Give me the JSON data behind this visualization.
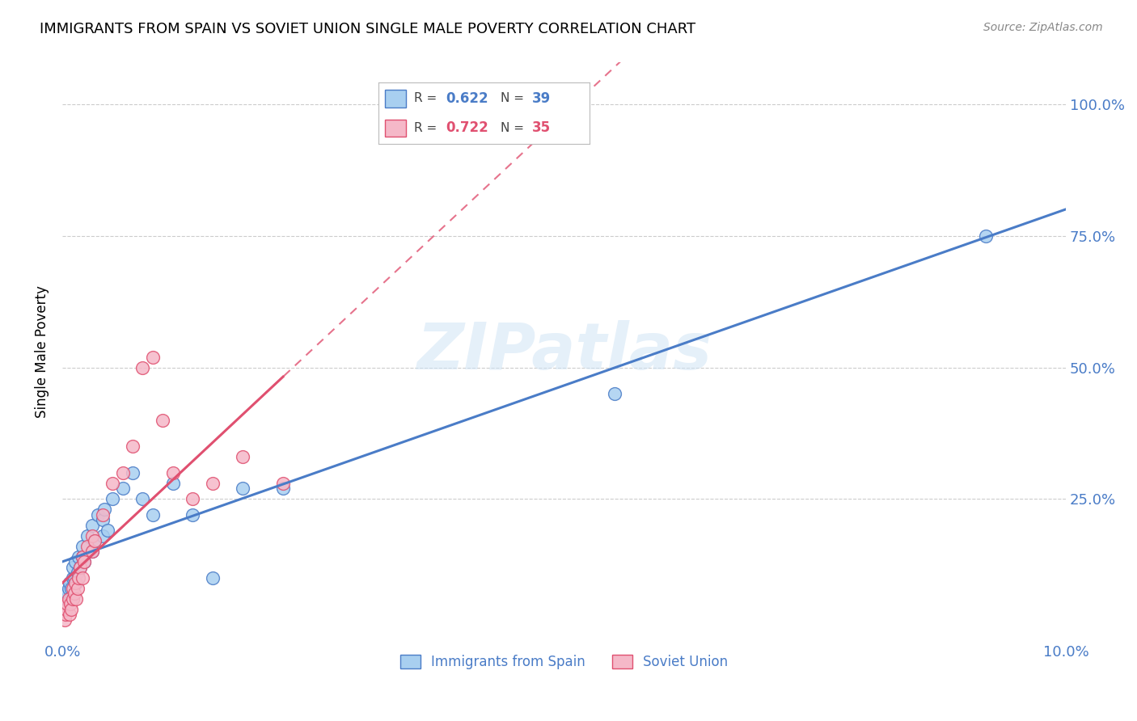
{
  "title": "IMMIGRANTS FROM SPAIN VS SOVIET UNION SINGLE MALE POVERTY CORRELATION CHART",
  "source": "Source: ZipAtlas.com",
  "ylabel": "Single Male Poverty",
  "ytick_labels": [
    "100.0%",
    "75.0%",
    "50.0%",
    "25.0%"
  ],
  "ytick_values": [
    1.0,
    0.75,
    0.5,
    0.25
  ],
  "xlim": [
    0.0,
    0.1
  ],
  "ylim": [
    -0.02,
    1.08
  ],
  "legend_label_1": "Immigrants from Spain",
  "legend_label_2": "Soviet Union",
  "r1": "0.622",
  "n1": "39",
  "r2": "0.722",
  "n2": "35",
  "color_spain": "#A8CFF0",
  "color_soviet": "#F5B8C8",
  "color_regression_spain": "#4A7CC7",
  "color_regression_soviet": "#E05070",
  "color_text_blue": "#4A7CC7",
  "watermark_text": "ZIPatlas",
  "spain_x": [
    0.0003,
    0.0004,
    0.0005,
    0.0006,
    0.0007,
    0.0008,
    0.0009,
    0.001,
    0.001,
    0.0012,
    0.0013,
    0.0014,
    0.0015,
    0.0016,
    0.0018,
    0.002,
    0.002,
    0.0022,
    0.0025,
    0.003,
    0.003,
    0.0032,
    0.0035,
    0.004,
    0.004,
    0.0042,
    0.0045,
    0.005,
    0.006,
    0.007,
    0.008,
    0.009,
    0.011,
    0.013,
    0.015,
    0.018,
    0.022,
    0.055,
    0.092
  ],
  "spain_y": [
    0.05,
    0.06,
    0.07,
    0.08,
    0.09,
    0.06,
    0.08,
    0.1,
    0.12,
    0.1,
    0.13,
    0.09,
    0.11,
    0.14,
    0.12,
    0.14,
    0.16,
    0.13,
    0.18,
    0.15,
    0.2,
    0.17,
    0.22,
    0.18,
    0.21,
    0.23,
    0.19,
    0.25,
    0.27,
    0.3,
    0.25,
    0.22,
    0.28,
    0.22,
    0.1,
    0.27,
    0.27,
    0.45,
    0.75
  ],
  "soviet_x": [
    0.0002,
    0.0003,
    0.0004,
    0.0005,
    0.0006,
    0.0007,
    0.0008,
    0.0009,
    0.001,
    0.001,
    0.0012,
    0.0013,
    0.0014,
    0.0015,
    0.0016,
    0.0018,
    0.002,
    0.002,
    0.0022,
    0.0025,
    0.003,
    0.003,
    0.0032,
    0.004,
    0.005,
    0.006,
    0.007,
    0.008,
    0.009,
    0.01,
    0.011,
    0.013,
    0.015,
    0.018,
    0.022
  ],
  "soviet_y": [
    0.02,
    0.03,
    0.04,
    0.05,
    0.06,
    0.03,
    0.05,
    0.04,
    0.06,
    0.08,
    0.07,
    0.09,
    0.06,
    0.08,
    0.1,
    0.12,
    0.1,
    0.14,
    0.13,
    0.16,
    0.15,
    0.18,
    0.17,
    0.22,
    0.28,
    0.3,
    0.35,
    0.5,
    0.52,
    0.4,
    0.3,
    0.25,
    0.28,
    0.33,
    0.28
  ],
  "background": "#FFFFFF",
  "grid_color": "#CCCCCC",
  "xtick_positions": [
    0.0,
    0.1
  ],
  "xtick_labels": [
    "0.0%",
    "10.0%"
  ]
}
